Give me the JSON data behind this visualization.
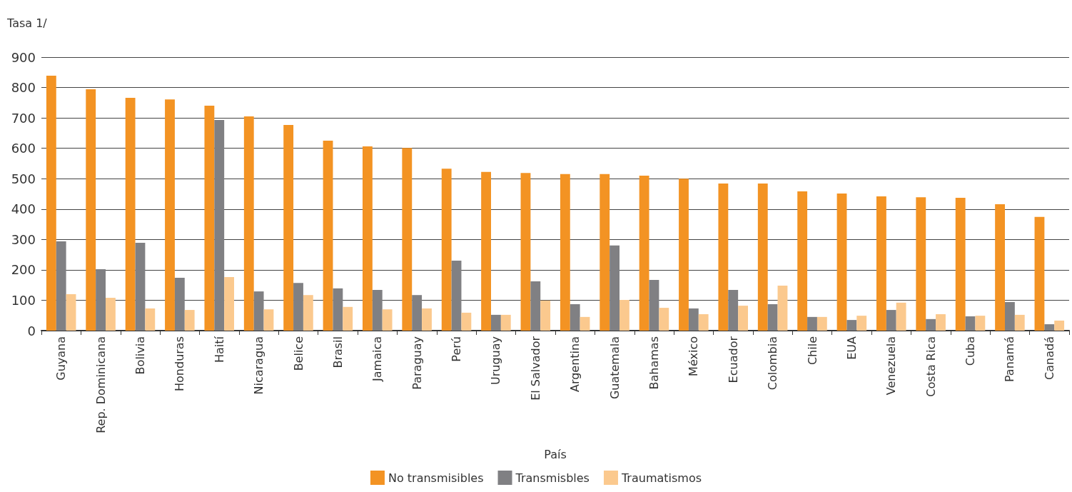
{
  "chart_data": {
    "type": "bar",
    "ylabel": "Tasa 1/",
    "xlabel": "País",
    "categories": [
      "Guyana",
      "Rep. Dominicana",
      "Bolivia",
      "Honduras",
      "Haití",
      "Nicaragua",
      "Belice",
      "Brasil",
      "Jamaica",
      "Paraguay",
      "Perú",
      "Uruguay",
      "El Salvador",
      "Argentina",
      "Guatemala",
      "Bahamas",
      "México",
      "Ecuador",
      "Colombia",
      "Chile",
      "EUA",
      "Venezuela",
      "Costa Rica",
      "Cuba",
      "Panamá",
      "Canadá"
    ],
    "series": [
      {
        "name": "No transmisibles",
        "color": "#f39323",
        "values": [
          839,
          794,
          766,
          761,
          740,
          705,
          677,
          625,
          606,
          601,
          533,
          522,
          519,
          515,
          515,
          510,
          500,
          484,
          484,
          458,
          451,
          442,
          439,
          437,
          416,
          374
        ]
      },
      {
        "name": "Transmisbles",
        "color": "#808083",
        "values": [
          294,
          202,
          289,
          174,
          693,
          129,
          157,
          139,
          134,
          117,
          230,
          52,
          162,
          87,
          280,
          167,
          73,
          134,
          87,
          45,
          35,
          68,
          38,
          47,
          94,
          21
        ]
      },
      {
        "name": "Traumatismos",
        "color": "#fbc98e",
        "values": [
          120,
          108,
          73,
          68,
          176,
          70,
          117,
          78,
          70,
          73,
          59,
          52,
          99,
          45,
          101,
          75,
          54,
          82,
          148,
          45,
          49,
          92,
          54,
          49,
          52,
          33
        ]
      }
    ],
    "ylim": [
      0,
      900
    ],
    "yticks": [
      0,
      100,
      200,
      300,
      400,
      500,
      600,
      700,
      800,
      900
    ],
    "grid": "y",
    "legend": "bottom"
  }
}
